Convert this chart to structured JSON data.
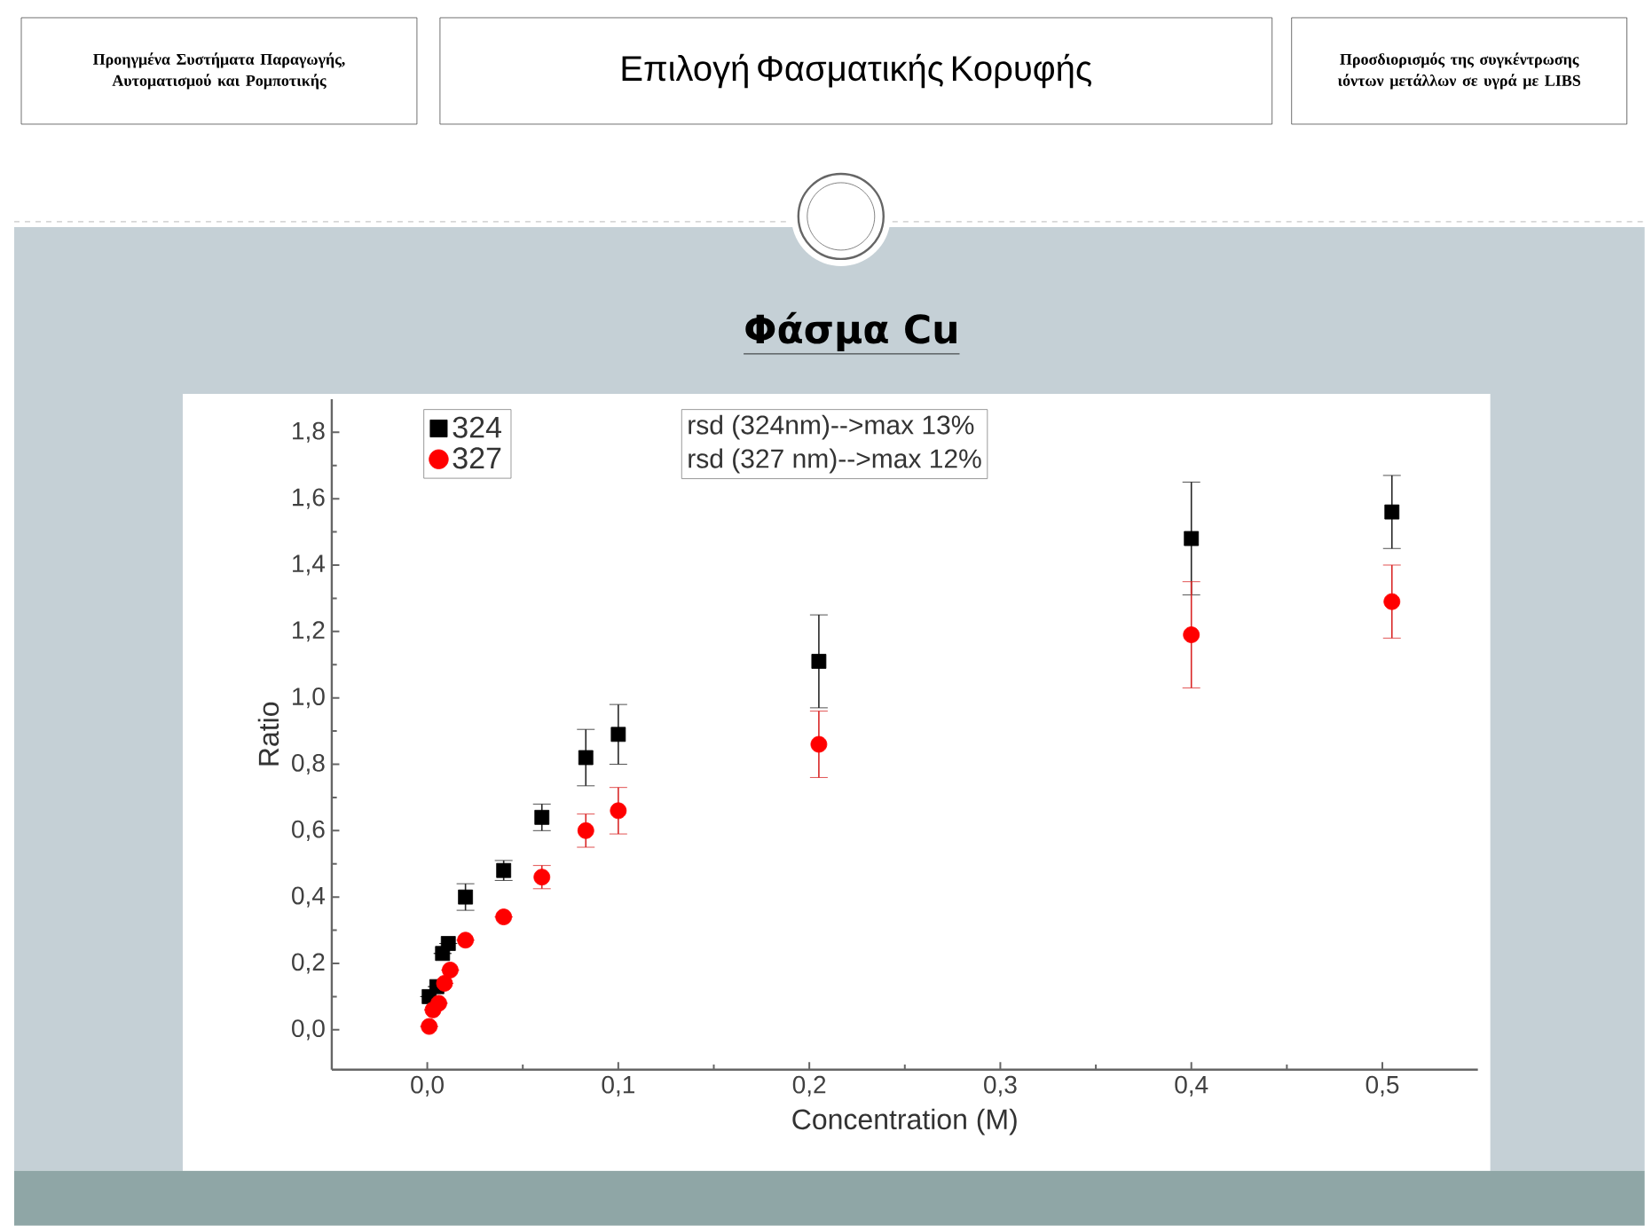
{
  "chart_data": {
    "type": "scatter",
    "title": "Φάσμα Cu",
    "xlabel": "Concentration (M)",
    "ylabel": "Ratio",
    "annotations": [
      "Προηγμένα Συστήματα Παραγωγής, Αυτοματισμού και Ρομποτικής",
      "Επιλογή Φασματικής Κορυφής",
      "Προσδιορισμός της συγκέντρωσης ιόντων μετάλλων σε υγρά με LIBS",
      "rsd (324nm)-->max 13%",
      "rsd (327 nm)-->max 12%"
    ],
    "series": [
      {
        "name": "324",
        "color": "#000000",
        "marker": "square",
        "x": [
          0.001,
          0.005,
          0.008,
          0.011,
          0.02,
          0.04,
          0.06,
          0.083,
          0.1,
          0.205,
          0.4,
          0.505
        ],
        "values": [
          0.1,
          0.13,
          0.23,
          0.26,
          0.4,
          0.48,
          0.64,
          0.82,
          0.89,
          1.11,
          1.48,
          1.56
        ],
        "errors": [
          null,
          null,
          null,
          null,
          0.04,
          0.03,
          0.04,
          0.085,
          0.09,
          0.14,
          0.17,
          0.11
        ]
      },
      {
        "name": "327",
        "color": "#ff0000",
        "marker": "circle",
        "x": [
          0.001,
          0.003,
          0.006,
          0.009,
          0.012,
          0.02,
          0.04,
          0.06,
          0.083,
          0.1,
          0.205,
          0.4,
          0.505
        ],
        "values": [
          0.01,
          0.06,
          0.08,
          0.14,
          0.18,
          0.27,
          0.34,
          0.46,
          0.6,
          0.66,
          0.86,
          1.19,
          1.29
        ],
        "errors": [
          null,
          null,
          null,
          null,
          null,
          null,
          null,
          0.035,
          0.05,
          0.07,
          0.1,
          0.16,
          0.11
        ]
      }
    ],
    "xlim": [
      -0.05,
      0.55
    ],
    "ylim": [
      -0.12,
      1.9
    ],
    "xticks": [
      {
        "value": 0,
        "label": "0,0"
      },
      {
        "value": 0.1,
        "label": "0,1"
      },
      {
        "value": 0.2,
        "label": "0,2"
      },
      {
        "value": 0.3,
        "label": "0,3"
      },
      {
        "value": 0.4,
        "label": "0,4"
      },
      {
        "value": 0.5,
        "label": "0,5"
      }
    ],
    "yticks": [
      {
        "value": 0,
        "label": "0,0"
      },
      {
        "value": 0.2,
        "label": "0,2"
      },
      {
        "value": 0.4,
        "label": "0,4"
      },
      {
        "value": 0.6,
        "label": "0,6"
      },
      {
        "value": 0.8,
        "label": "0,8"
      },
      {
        "value": 1.0,
        "label": "1,0"
      },
      {
        "value": 1.2,
        "label": "1,2"
      },
      {
        "value": 1.4,
        "label": "1,4"
      },
      {
        "value": 1.6,
        "label": "1,6"
      },
      {
        "value": 1.8,
        "label": "1,8"
      }
    ],
    "legend": "top left"
  }
}
